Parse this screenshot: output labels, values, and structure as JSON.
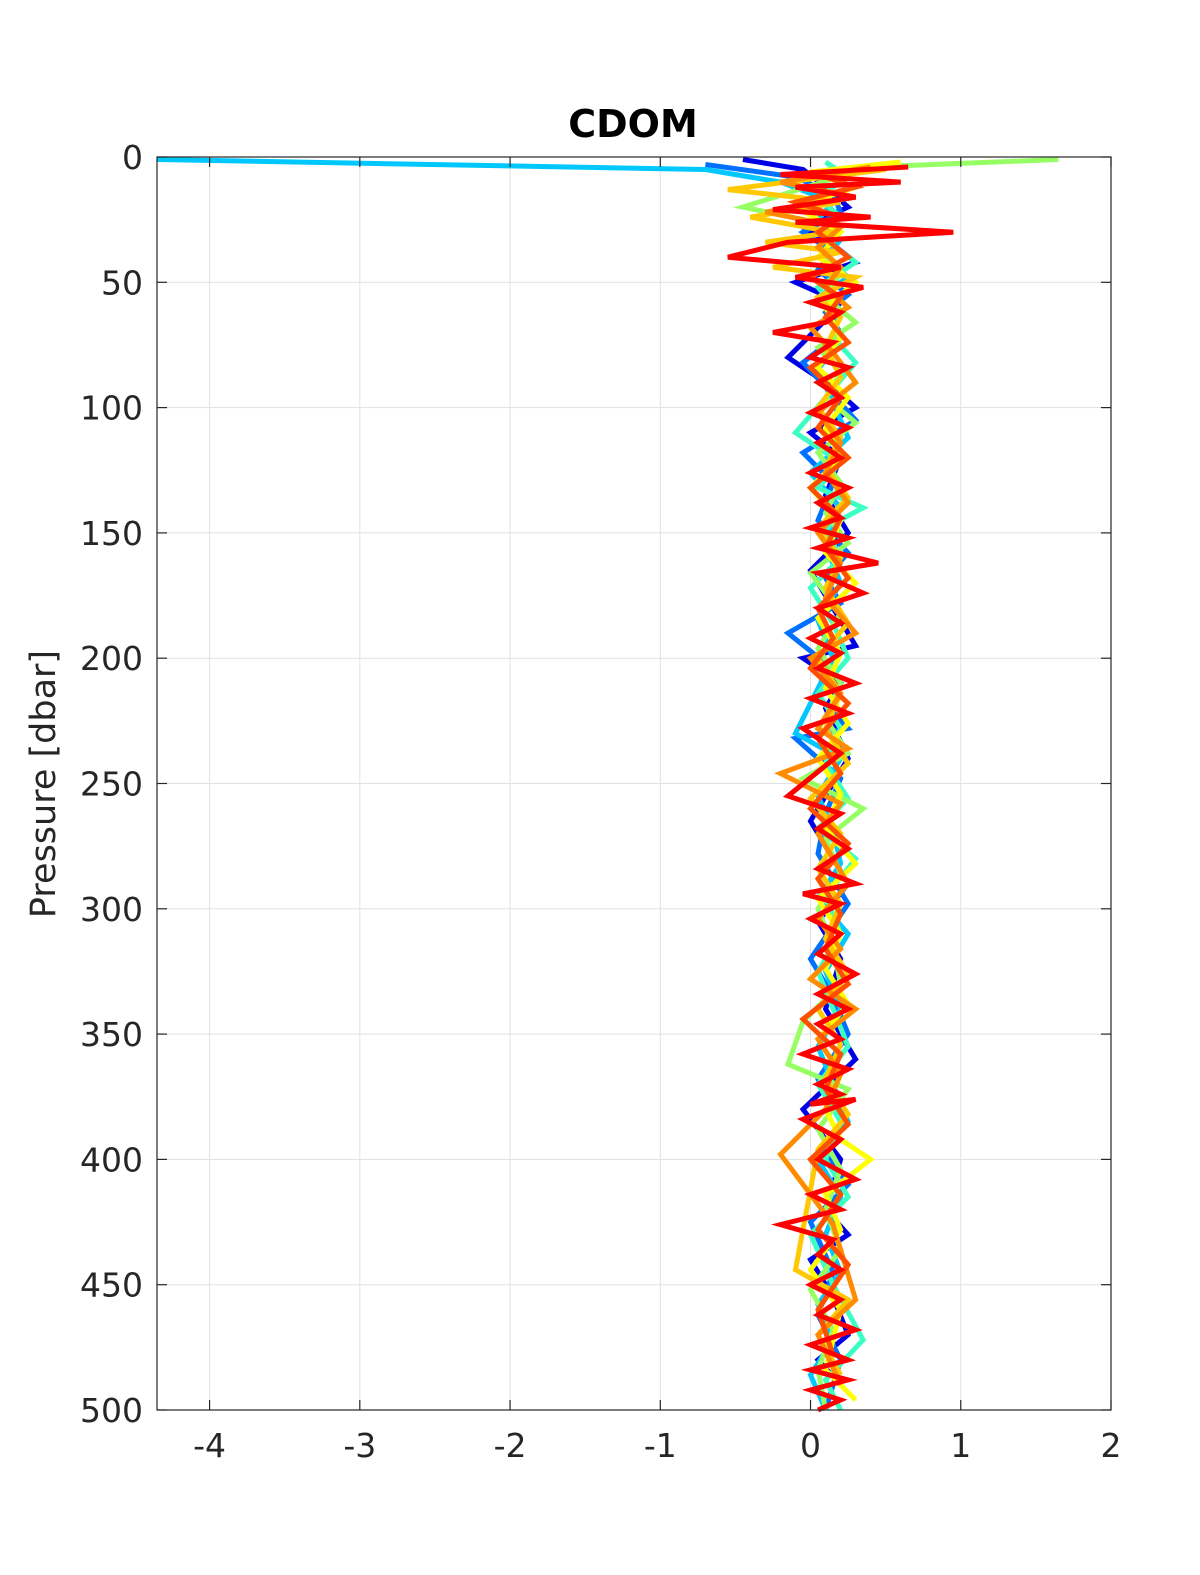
{
  "chart_data": {
    "type": "line",
    "title": "CDOM",
    "xlabel": "",
    "ylabel": "Pressure [dbar]",
    "xlim": [
      -4.35,
      2
    ],
    "ylim": [
      0,
      500
    ],
    "y_reversed": true,
    "grid": true,
    "legend": "none",
    "xticks": [
      -4,
      -3,
      -2,
      -1,
      0,
      1,
      2
    ],
    "xtick_labels": [
      "-4",
      "-3",
      "-2",
      "-1",
      "0",
      "1",
      "2"
    ],
    "yticks": [
      0,
      50,
      100,
      150,
      200,
      250,
      300,
      350,
      400,
      450,
      500
    ],
    "ytick_labels": [
      "0",
      "50",
      "100",
      "150",
      "200",
      "250",
      "300",
      "350",
      "400",
      "450",
      "500"
    ],
    "series": [
      {
        "color": "#0000e6",
        "x": [
          -0.45,
          -0.05,
          0.1,
          0.25,
          -0.05,
          0.15,
          0.3,
          -0.1,
          0.2,
          0.1,
          -0.15,
          0.15,
          0.3,
          0.0,
          0.2,
          0.1,
          0.25,
          0.0,
          0.15,
          0.3,
          -0.05,
          0.2,
          0.1,
          0.25,
          0.0,
          0.15,
          0.25,
          0.05,
          0.2,
          0.1,
          0.3,
          -0.05,
          0.2,
          0.1,
          0.25,
          0.0,
          0.15,
          0.25,
          0.05,
          0.2
        ],
        "y": [
          1,
          5,
          12,
          20,
          28,
          35,
          42,
          50,
          58,
          65,
          80,
          92,
          100,
          110,
          120,
          135,
          150,
          165,
          180,
          195,
          200,
          210,
          220,
          240,
          265,
          280,
          290,
          305,
          320,
          340,
          360,
          380,
          400,
          420,
          430,
          440,
          455,
          470,
          480,
          490
        ]
      },
      {
        "color": "#0070ff",
        "x": [
          -0.7,
          -0.1,
          0.15,
          0.2,
          -0.05,
          0.15,
          0.05,
          0.25,
          0.1,
          0.2,
          -0.05,
          0.15,
          0.3,
          -0.05,
          0.15,
          0.05,
          0.25,
          0.1,
          0.2,
          -0.15,
          0.1,
          0.05,
          0.25,
          -0.1,
          0.2,
          0.1,
          0.05,
          0.25,
          0.0,
          0.15,
          0.25,
          0.05,
          0.2,
          0.1,
          0.25,
          0.0,
          0.15,
          0.05,
          0.2,
          0.1
        ],
        "y": [
          3,
          8,
          15,
          22,
          30,
          38,
          45,
          55,
          62,
          70,
          82,
          95,
          105,
          118,
          130,
          145,
          158,
          168,
          178,
          190,
          202,
          215,
          228,
          232,
          248,
          262,
          278,
          298,
          320,
          335,
          350,
          368,
          385,
          398,
          410,
          425,
          445,
          462,
          480,
          500
        ]
      },
      {
        "color": "#00c8ff",
        "x": [
          -4.35,
          -0.7,
          -0.2,
          0.15,
          0.05,
          0.2,
          0.1,
          0.25,
          0.05,
          0.15,
          0.2,
          0.05,
          0.15,
          0.25,
          0.0,
          0.2,
          0.1,
          0.2,
          0.05,
          0.15,
          -0.1,
          0.2,
          0.05,
          0.15,
          0.2,
          0.05,
          0.25,
          0.1,
          0.2,
          0.05,
          0.15,
          0.25,
          0.05,
          0.2,
          0.1,
          0.2,
          0.05,
          0.15,
          0.0,
          0.1
        ],
        "y": [
          1,
          5,
          10,
          18,
          25,
          33,
          40,
          48,
          56,
          64,
          72,
          85,
          98,
          112,
          126,
          140,
          155,
          170,
          185,
          200,
          230,
          240,
          255,
          268,
          282,
          296,
          310,
          325,
          340,
          355,
          370,
          385,
          400,
          415,
          430,
          445,
          458,
          472,
          486,
          500
        ]
      },
      {
        "color": "#3cffc3",
        "x": [
          0.1,
          0.25,
          0.05,
          0.2,
          0.1,
          0.3,
          0.05,
          0.2,
          0.15,
          0.3,
          0.1,
          -0.1,
          0.2,
          0.05,
          0.35,
          0.1,
          0.2,
          0.0,
          0.15,
          0.25,
          0.05,
          0.2,
          0.1,
          0.25,
          0.05,
          0.3,
          0.1,
          0.2,
          0.05,
          0.15,
          0.25,
          0.05,
          0.2,
          0.1,
          0.25,
          0.0,
          0.15,
          0.35,
          0.1,
          0.2
        ],
        "y": [
          2,
          8,
          16,
          24,
          33,
          42,
          52,
          62,
          72,
          82,
          96,
          110,
          122,
          132,
          140,
          148,
          160,
          172,
          186,
          200,
          214,
          228,
          242,
          256,
          268,
          280,
          295,
          310,
          325,
          340,
          355,
          370,
          385,
          400,
          415,
          430,
          450,
          472,
          488,
          500
        ]
      },
      {
        "color": "#96ff64",
        "x": [
          1.65,
          0.4,
          -0.45,
          0.2,
          0.05,
          0.2,
          0.1,
          0.3,
          0.05,
          0.2,
          0.1,
          0.3,
          0.05,
          0.2,
          0.1,
          0.25,
          0.0,
          0.2,
          0.05,
          0.2,
          0.1,
          0.25,
          -0.05,
          0.35,
          0.1,
          0.2,
          0.05,
          0.15,
          0.2,
          -0.05,
          -0.15,
          0.25,
          0.05,
          0.2,
          0.1,
          0.2,
          0.0,
          0.15,
          0.05,
          0.1
        ],
        "y": [
          1,
          4,
          20,
          28,
          36,
          46,
          56,
          66,
          76,
          86,
          96,
          106,
          118,
          130,
          142,
          154,
          166,
          182,
          196,
          210,
          224,
          238,
          248,
          260,
          272,
          286,
          300,
          315,
          330,
          345,
          362,
          372,
          388,
          404,
          420,
          436,
          452,
          468,
          484,
          500
        ]
      },
      {
        "color": "#ffff00",
        "x": [
          0.6,
          0.0,
          0.3,
          -0.1,
          0.2,
          0.05,
          0.3,
          0.1,
          0.2,
          0.05,
          0.25,
          0.1,
          0.2,
          0.0,
          0.2,
          0.1,
          0.3,
          0.05,
          0.2,
          0.1,
          0.25,
          0.05,
          0.2,
          0.1,
          0.3,
          0.05,
          0.2,
          0.1,
          0.25,
          0.05,
          0.2,
          0.1,
          0.2,
          0.4,
          0.1,
          0.2,
          0.0,
          0.2,
          0.1,
          0.3
        ],
        "y": [
          2,
          6,
          12,
          20,
          30,
          40,
          50,
          60,
          72,
          84,
          96,
          108,
          120,
          132,
          145,
          158,
          170,
          184,
          198,
          212,
          226,
          240,
          254,
          268,
          282,
          296,
          310,
          324,
          338,
          352,
          366,
          380,
          392,
          400,
          414,
          428,
          444,
          460,
          484,
          496
        ]
      },
      {
        "color": "#ffc800",
        "x": [
          0.5,
          -0.55,
          0.2,
          -0.4,
          0.15,
          -0.3,
          0.2,
          -0.25,
          0.3,
          0.05,
          0.2,
          0.1,
          0.2,
          0.05,
          0.2,
          0.1,
          0.25,
          0.05,
          0.2,
          0.1,
          0.25,
          0.05,
          0.2,
          0.1,
          0.25,
          0.0,
          0.2,
          0.05,
          0.2,
          0.1,
          0.25,
          0.05,
          0.2,
          0.1,
          0.25,
          0.05,
          -0.1,
          0.25,
          0.05,
          0.2
        ],
        "y": [
          5,
          13,
          18,
          24,
          30,
          34,
          38,
          44,
          48,
          56,
          64,
          76,
          88,
          100,
          112,
          124,
          136,
          148,
          160,
          172,
          186,
          200,
          214,
          228,
          242,
          256,
          270,
          284,
          298,
          312,
          326,
          340,
          354,
          368,
          382,
          396,
          444,
          456,
          470,
          486
        ]
      },
      {
        "color": "#ff8c00",
        "x": [
          0.4,
          -0.2,
          0.3,
          -0.3,
          0.2,
          0.05,
          0.2,
          0.1,
          0.25,
          0.0,
          0.15,
          0.3,
          0.05,
          0.2,
          0.1,
          0.25,
          0.05,
          0.2,
          0.1,
          0.3,
          0.0,
          0.2,
          0.05,
          0.25,
          -0.2,
          0.2,
          0.05,
          0.25,
          0.05,
          0.2,
          0.0,
          0.3,
          0.05,
          0.2,
          0.1,
          -0.2,
          0.15,
          0.3,
          0.05,
          0.2
        ],
        "y": [
          4,
          10,
          16,
          22,
          28,
          36,
          44,
          52,
          60,
          68,
          78,
          90,
          102,
          114,
          126,
          138,
          150,
          162,
          176,
          190,
          200,
          214,
          228,
          236,
          246,
          258,
          270,
          290,
          304,
          316,
          328,
          340,
          352,
          366,
          380,
          398,
          426,
          456,
          470,
          490
        ]
      },
      {
        "color": "#ff5000",
        "x": [
          0.0,
          0.3,
          -0.1,
          0.2,
          0.05,
          0.25,
          0.0,
          0.2,
          0.1,
          0.25,
          0.0,
          0.2,
          0.05,
          0.25,
          0.0,
          0.2,
          0.1,
          0.25,
          0.05,
          0.15,
          0.0,
          0.25,
          0.05,
          0.2,
          0.0,
          0.25,
          0.05,
          0.2,
          0.1,
          0.25,
          -0.05,
          0.2,
          0.1,
          0.25,
          0.0,
          0.2,
          0.05,
          0.25,
          0.05,
          0.15
        ],
        "y": [
          6,
          12,
          18,
          24,
          30,
          40,
          48,
          56,
          64,
          74,
          84,
          96,
          108,
          120,
          132,
          144,
          156,
          168,
          180,
          192,
          204,
          218,
          232,
          246,
          260,
          274,
          288,
          302,
          316,
          330,
          344,
          358,
          372,
          386,
          400,
          414,
          428,
          442,
          460,
          478
        ]
      },
      {
        "color": "#ff0000",
        "x": [
          0.65,
          -0.2,
          0.6,
          -0.1,
          0.3,
          -0.25,
          0.4,
          -0.1,
          0.95,
          -0.15,
          -0.55,
          0.2,
          -0.1,
          0.35,
          0.0,
          0.2,
          0.1,
          -0.25,
          0.15,
          0.0,
          0.25,
          0.05,
          0.2,
          0.0,
          0.25,
          0.05,
          0.2,
          0.0,
          0.25,
          0.05,
          0.2,
          0.0,
          0.25,
          0.05,
          0.45,
          0.05,
          0.35,
          0.05,
          0.2,
          0.0,
          0.2,
          0.05,
          0.3,
          0.0,
          0.25,
          -0.05,
          0.2,
          -0.15,
          0.2,
          0.05,
          0.25,
          0.05,
          0.3,
          -0.05,
          0.2,
          0.0,
          0.2,
          0.05,
          0.3,
          0.05,
          0.25,
          0.05,
          0.2,
          -0.05,
          0.25,
          0.05,
          0.2,
          0.0,
          0.3,
          -0.05,
          0.2,
          0.05,
          0.3,
          0.0,
          0.2,
          -0.2,
          0.15,
          0.05,
          0.2,
          0.0,
          0.2,
          0.05,
          0.3,
          0.0,
          0.25,
          0.0,
          0.25,
          0.0,
          0.2,
          0.05
        ],
        "y": [
          4,
          7,
          10,
          12,
          16,
          21,
          24,
          26,
          30,
          34,
          40,
          44,
          48,
          52,
          58,
          62,
          66,
          70,
          74,
          80,
          84,
          90,
          96,
          102,
          108,
          114,
          120,
          126,
          132,
          138,
          144,
          148,
          152,
          156,
          162,
          166,
          174,
          180,
          186,
          192,
          198,
          204,
          210,
          216,
          222,
          228,
          238,
          255,
          262,
          268,
          276,
          284,
          290,
          294,
          298,
          304,
          310,
          318,
          326,
          334,
          340,
          346,
          352,
          358,
          364,
          370,
          374,
          378,
          376,
          384,
          392,
          400,
          408,
          414,
          420,
          426,
          432,
          438,
          444,
          450,
          456,
          462,
          468,
          474,
          480,
          484,
          488,
          492,
          496,
          500
        ]
      }
    ]
  }
}
